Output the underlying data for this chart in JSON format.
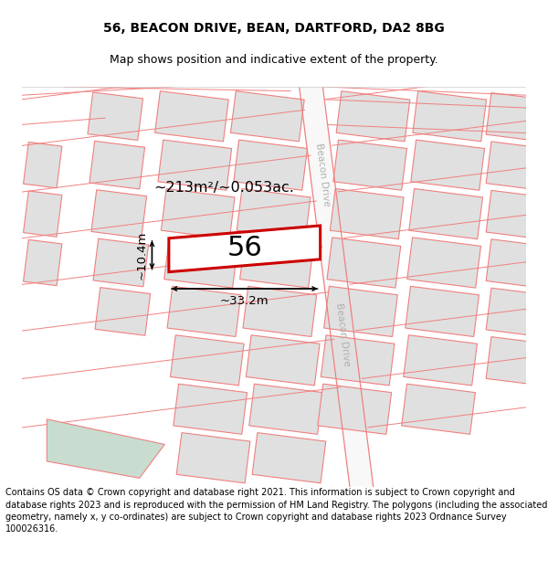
{
  "title": "56, BEACON DRIVE, BEAN, DARTFORD, DA2 8BG",
  "subtitle": "Map shows position and indicative extent of the property.",
  "footer": "Contains OS data © Crown copyright and database right 2021. This information is subject to Crown copyright and database rights 2023 and is reproduced with the permission of HM Land Registry. The polygons (including the associated geometry, namely x, y co-ordinates) are subject to Crown copyright and database rights 2023 Ordnance Survey 100026316.",
  "area_label": "~213m²/~0.053ac.",
  "width_label": "~33.2m",
  "height_label": "~10.4m",
  "property_number": "56",
  "road_label": "Beacon Drive",
  "property_fill": "#ffffff",
  "property_stroke": "#cc0000",
  "building_fill": "#e0e0e0",
  "building_stroke": "#f08080",
  "road_line_color": "#f08080",
  "green_fill": "#c8ddd0",
  "road_text_color": "#b0b0b0",
  "title_fontsize": 10,
  "subtitle_fontsize": 9,
  "footer_fontsize": 7
}
